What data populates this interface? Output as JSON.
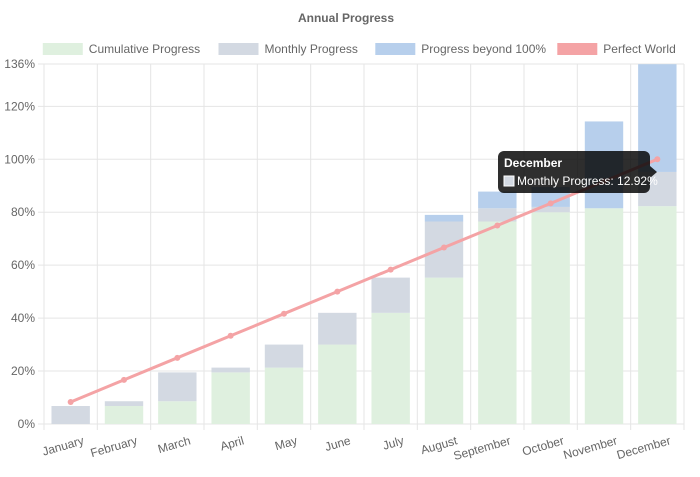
{
  "chart_data": {
    "type": "bar",
    "title": "Annual Progress",
    "categories": [
      "January",
      "February",
      "March",
      "April",
      "May",
      "June",
      "July",
      "August",
      "September",
      "October",
      "November",
      "December"
    ],
    "series": [
      {
        "name": "Cumulative Progress",
        "kind": "bar",
        "color": "#dff0df",
        "values": [
          0,
          6.8,
          8.6,
          19.5,
          21.3,
          30.0,
          42.0,
          55.3,
          76.5,
          80.0,
          81.5,
          82.3
        ]
      },
      {
        "name": "Monthly Progress",
        "kind": "bar",
        "color": "#d3d9e2",
        "values": [
          6.8,
          1.8,
          10.9,
          1.8,
          8.7,
          12.0,
          13.3,
          21.2,
          5.0,
          2.0,
          0.0,
          12.92
        ]
      },
      {
        "name": "Progress beyond 100%",
        "kind": "bar",
        "color": "#b7cfec",
        "values": [
          0,
          0,
          0,
          0,
          0,
          0,
          0,
          2.5,
          6.3,
          7.5,
          32.8,
          40.7
        ]
      },
      {
        "name": "Perfect World",
        "kind": "line",
        "color": "#f4a3a5",
        "values": [
          8.33,
          16.67,
          25.0,
          33.33,
          41.67,
          50.0,
          58.33,
          66.67,
          75.0,
          83.33,
          91.67,
          100.0
        ]
      }
    ],
    "y_ticks": [
      "0%",
      "20%",
      "40%",
      "60%",
      "80%",
      "100%",
      "120%",
      "136%"
    ],
    "ylim": [
      0,
      136
    ],
    "y_tick_values": [
      0,
      20,
      40,
      60,
      80,
      100,
      120,
      136
    ],
    "legend_position": "top",
    "grid": true,
    "tooltip": {
      "title": "December",
      "label": "Monthly Progress: 12.92%",
      "swatch_color": "#d3d9e2"
    }
  }
}
